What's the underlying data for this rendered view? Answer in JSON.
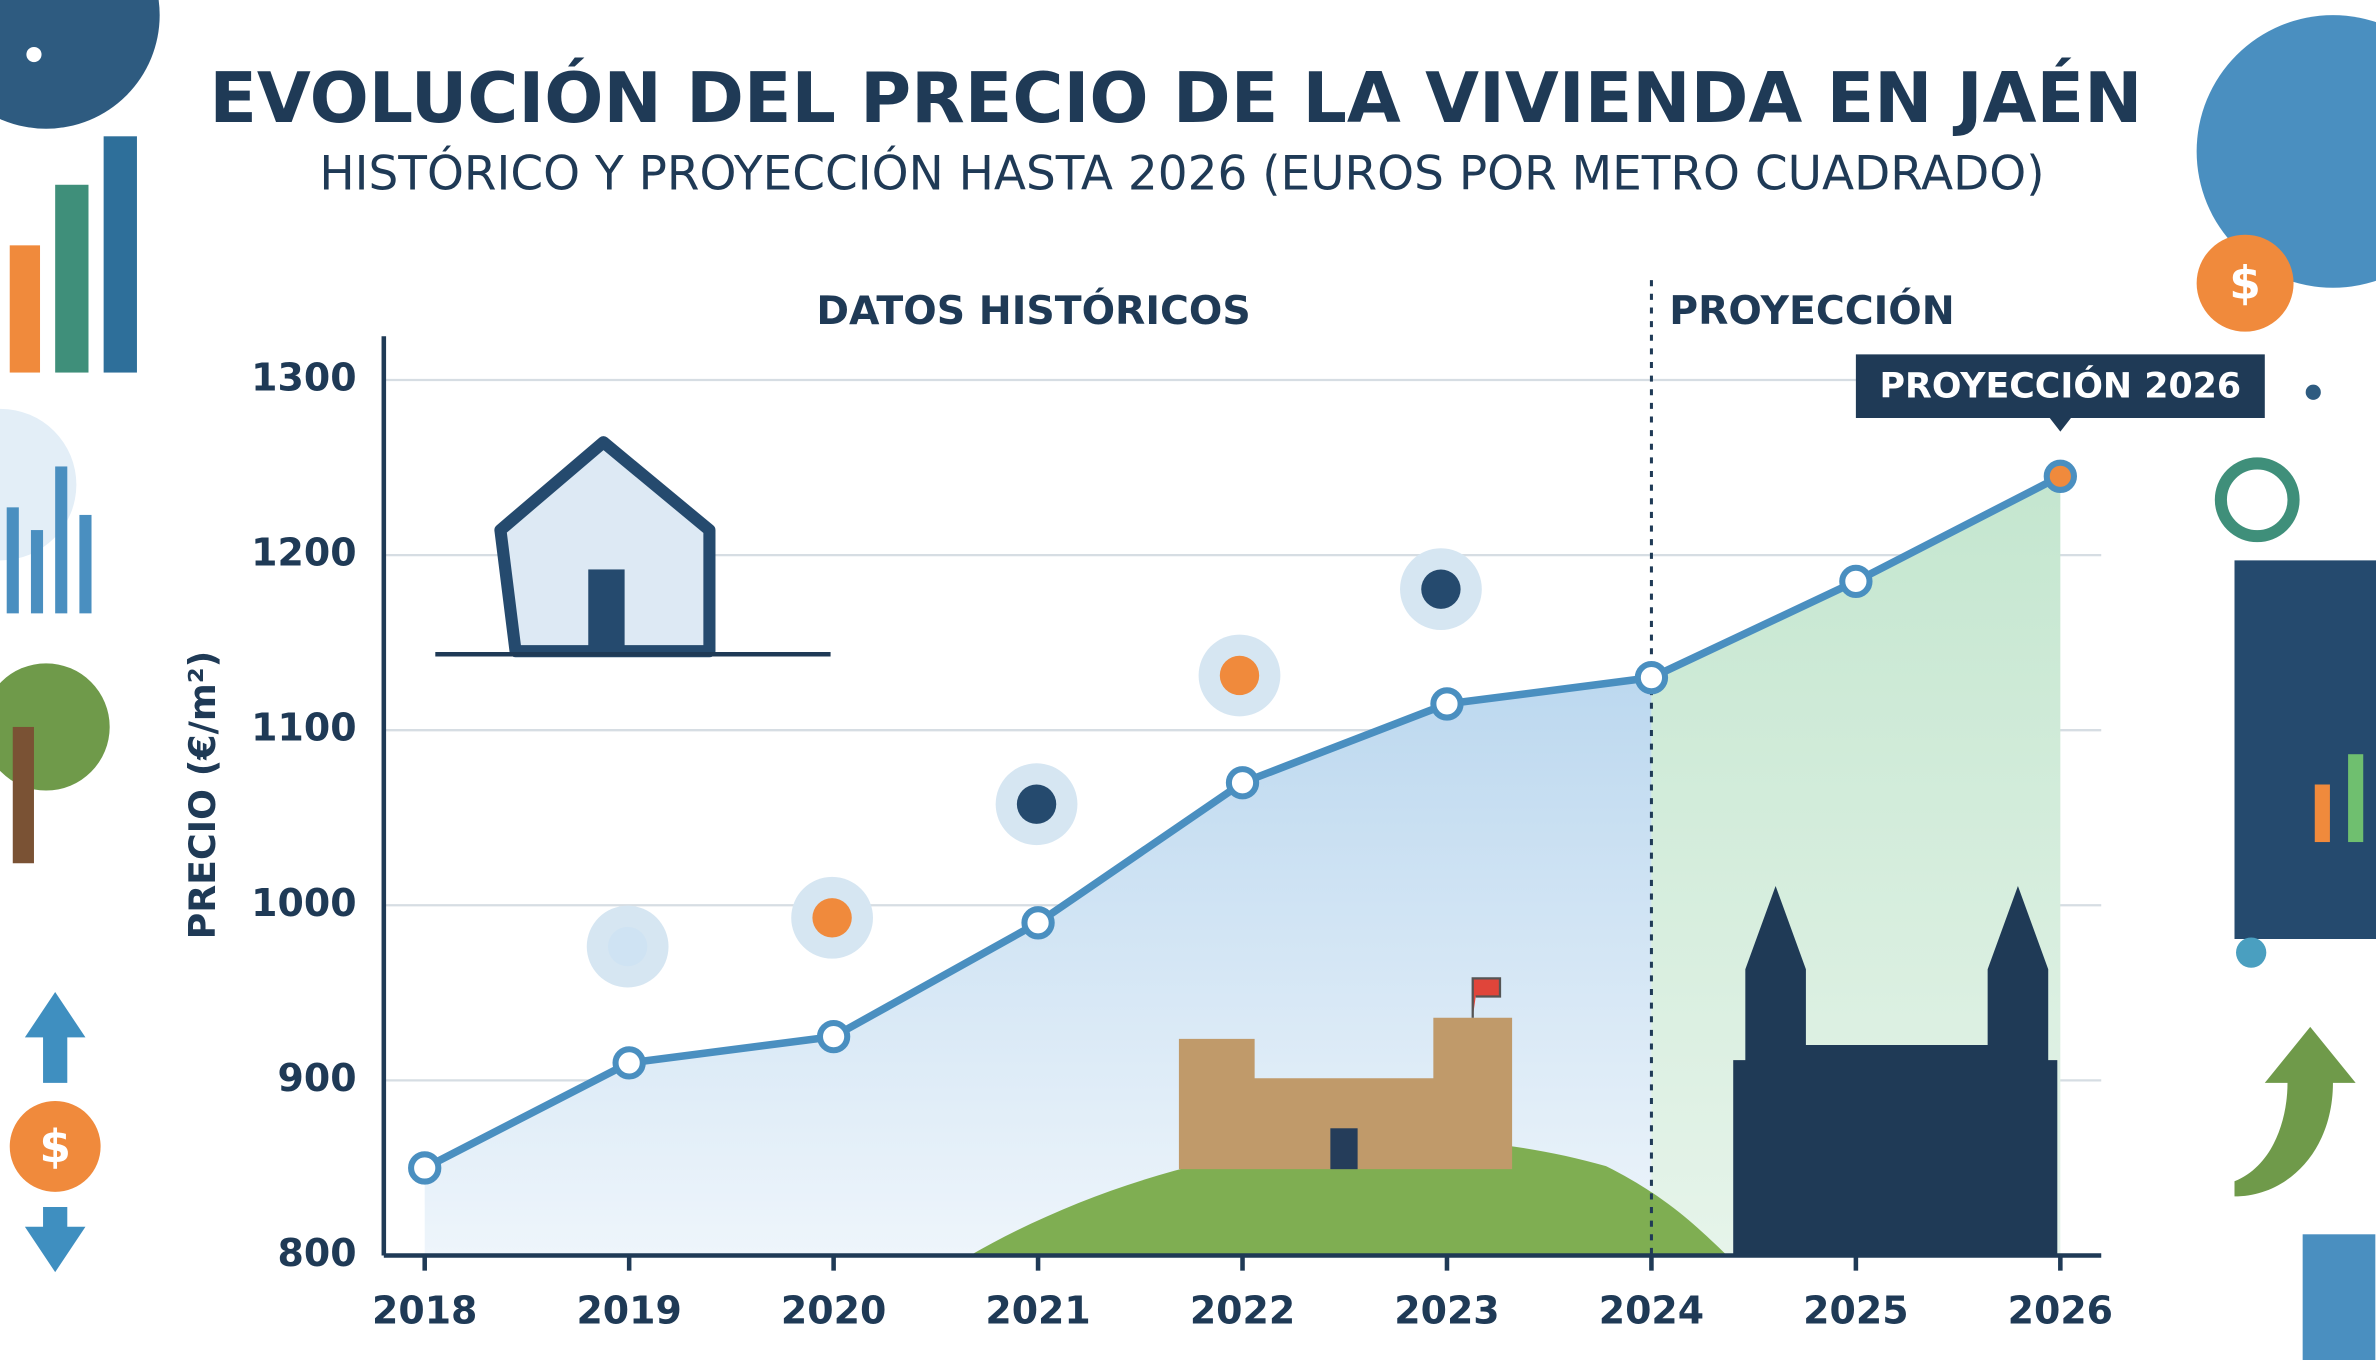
{
  "chart_data": {
    "type": "line",
    "title": "EVOLUCIÓN DEL PRECIO DE LA VIVIENDA EN JAÉN",
    "subtitle": "HISTÓRICO Y PROYECCIÓN HASTA 2026 (EUROS POR METRO CUADRADO)",
    "y_label": "PRECIO (€/m²)",
    "historical_label": "DATOS HISTÓRICOS",
    "projection_label": "PROYECCIÓN",
    "callout": "PROYECCIÓN 2026",
    "projection_from": 2024,
    "x": [
      2018,
      2019,
      2020,
      2021,
      2022,
      2023,
      2024,
      2025,
      2026
    ],
    "values": [
      850,
      910,
      925,
      990,
      1070,
      1115,
      1130,
      1185,
      1245
    ],
    "color": "#4a8fc0",
    "historical_fill": "#cfe3f3",
    "projection_fill": "#d3ecd9",
    "xlim": [
      2017.8,
      2026.2
    ],
    "xticks": [
      2018,
      2019,
      2020,
      2021,
      2022,
      2023,
      2024,
      2025,
      2026
    ],
    "ylim": [
      800,
      1325
    ],
    "yticks": [
      800,
      900,
      1000,
      1100,
      1200,
      1300
    ],
    "grid": true
  }
}
